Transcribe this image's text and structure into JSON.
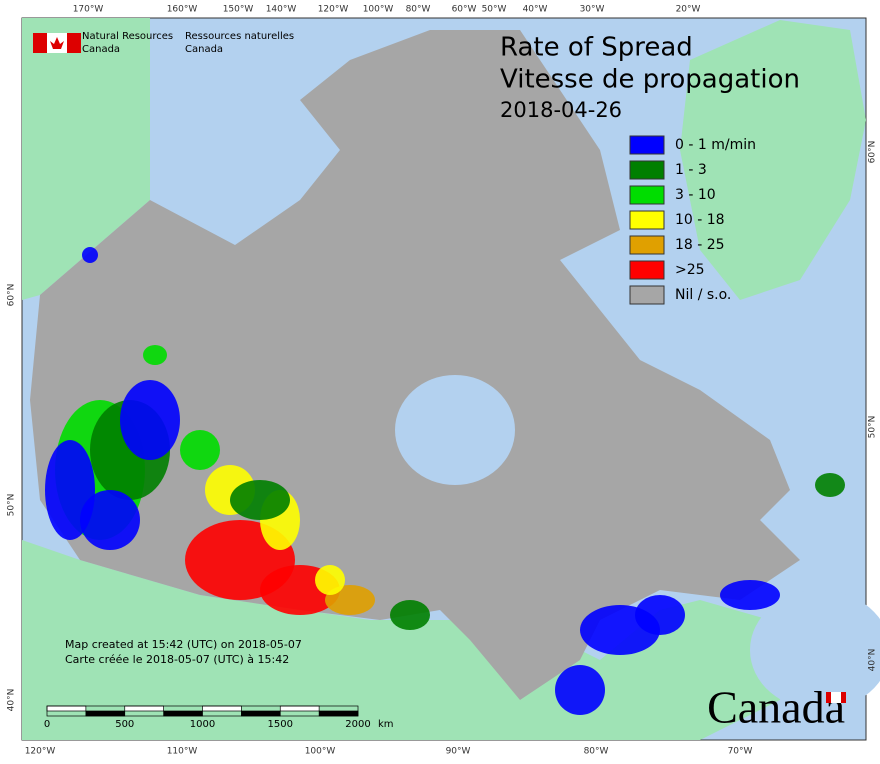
{
  "header": {
    "agency_en": [
      "Natural Resources",
      "Canada"
    ],
    "agency_fr": [
      "Ressources naturelles",
      "Canada"
    ]
  },
  "title": {
    "lines": [
      "Rate of Spread",
      "Vitesse de propagation"
    ],
    "date": "2018-04-26"
  },
  "legend": [
    {
      "label": "0 - 1 m/min",
      "color": "#0000ff"
    },
    {
      "label": "1 - 3",
      "color": "#007f00"
    },
    {
      "label": "3 - 10",
      "color": "#00dd00"
    },
    {
      "label": "10 - 18",
      "color": "#ffff00"
    },
    {
      "label": "18 - 25",
      "color": "#e0a000"
    },
    {
      "label": ">25",
      "color": "#ff0000"
    },
    {
      "label": "Nil / s.o.",
      "color": "#a6a6a6"
    }
  ],
  "graticule": {
    "top": [
      "170°W",
      "160°W",
      "150°W",
      "140°W",
      "120°W",
      "100°W",
      "80°W",
      "60°W",
      "50°W",
      "40°W",
      "30°W",
      "20°W"
    ],
    "bottom": [
      "120°W",
      "110°W",
      "100°W",
      "90°W",
      "80°W",
      "70°W"
    ],
    "left": [
      "60°N",
      "50°N",
      "40°N"
    ],
    "right": [
      "60°N",
      "50°N",
      "40°N"
    ]
  },
  "notes": [
    "Map created at 15:42 (UTC) on 2018-05-07",
    "Carte créée le 2018-05-07 (UTC) à 15:42"
  ],
  "scale_bar": {
    "ticks": [
      0,
      500,
      1000,
      1500,
      2000
    ],
    "unit": "km"
  },
  "wordmark": "Canada"
}
